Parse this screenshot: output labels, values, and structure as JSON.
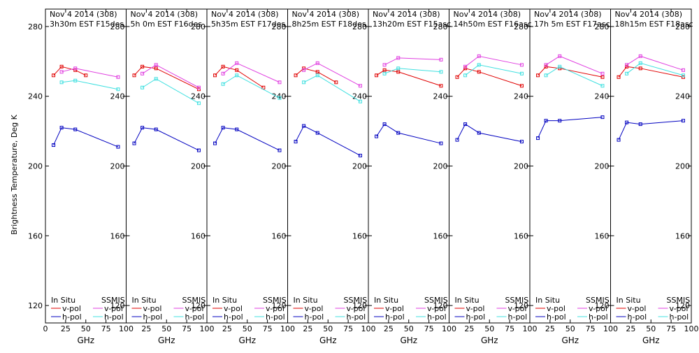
{
  "chart_data": {
    "type": "line",
    "ylabel": "Brightness Temperature, Deg K",
    "xlabel": "GHz",
    "xlim": [
      0,
      100
    ],
    "ylim": [
      110,
      290
    ],
    "x_ticks": [
      0,
      25,
      50,
      75,
      100
    ],
    "x_tick_labels": [
      "0",
      "25",
      "50",
      "75",
      "100"
    ],
    "x_tick_labels_last_panel": [
      "0",
      "25",
      "50",
      "75",
      "100"
    ],
    "x_tick_labels_other_panels": [
      "25",
      "50",
      "75",
      "100"
    ],
    "y_ticks": [
      120,
      160,
      200,
      240,
      280
    ],
    "y_tick_labels": [
      "120",
      "160",
      "200",
      "240",
      "280"
    ],
    "legend": {
      "in_situ": "In Situ",
      "ssmis": "SSMIS",
      "vpol": "v-pol",
      "hpol": "h-pol"
    },
    "colors": {
      "insitu_v": "#e00000",
      "insitu_h": "#0000c0",
      "ssmis_v": "#e040e0",
      "ssmis_h": "#40e0e0",
      "frame": "#000000",
      "background": "#ffffff"
    },
    "panels": [
      {
        "title1": "Nov 4 2014 (308)",
        "title2": "3h30m EST F15des",
        "insitu_v": {
          "x": [
            10,
            20,
            37,
            50
          ],
          "y": [
            252,
            257,
            255,
            252
          ]
        },
        "insitu_h": {
          "x": [
            10,
            20,
            37,
            90
          ],
          "y": [
            212,
            222,
            221,
            211
          ]
        },
        "ssmis_v": {
          "x": [
            20,
            37,
            90
          ],
          "y": [
            254,
            256,
            251
          ]
        },
        "ssmis_h": {
          "x": [
            20,
            37,
            90
          ],
          "y": [
            248,
            249,
            244
          ]
        }
      },
      {
        "title1": "Nov 4 2014 (308)",
        "title2": "5h 0m EST F16des",
        "insitu_v": {
          "x": [
            10,
            20,
            37,
            90
          ],
          "y": [
            252,
            257,
            256,
            244
          ]
        },
        "insitu_h": {
          "x": [
            10,
            20,
            37,
            90
          ],
          "y": [
            213,
            222,
            221,
            209
          ]
        },
        "ssmis_v": {
          "x": [
            20,
            37,
            90
          ],
          "y": [
            253,
            258,
            245
          ]
        },
        "ssmis_h": {
          "x": [
            20,
            37,
            90
          ],
          "y": [
            245,
            250,
            236
          ]
        }
      },
      {
        "title1": "Nov 4 2014 (308)",
        "title2": "5h35m EST F17des",
        "insitu_v": {
          "x": [
            10,
            20,
            37,
            70
          ],
          "y": [
            252,
            257,
            255,
            245
          ]
        },
        "insitu_h": {
          "x": [
            10,
            20,
            37,
            90
          ],
          "y": [
            213,
            222,
            221,
            209
          ]
        },
        "ssmis_v": {
          "x": [
            20,
            37,
            90
          ],
          "y": [
            253,
            259,
            248
          ]
        },
        "ssmis_h": {
          "x": [
            20,
            37,
            90
          ],
          "y": [
            247,
            252,
            239
          ]
        }
      },
      {
        "title1": "Nov 4 2014 (308)",
        "title2": "8h25m EST F18des",
        "insitu_v": {
          "x": [
            10,
            20,
            37,
            60
          ],
          "y": [
            252,
            256,
            254,
            248
          ]
        },
        "insitu_h": {
          "x": [
            10,
            20,
            37,
            90
          ],
          "y": [
            214,
            223,
            219,
            206
          ]
        },
        "ssmis_v": {
          "x": [
            20,
            37,
            90
          ],
          "y": [
            255,
            259,
            246
          ]
        },
        "ssmis_h": {
          "x": [
            20,
            37,
            90
          ],
          "y": [
            248,
            252,
            237
          ]
        }
      },
      {
        "title1": "Nov 4 2014 (308)",
        "title2": "13h20m EST F15asc",
        "insitu_v": {
          "x": [
            10,
            20,
            37,
            90
          ],
          "y": [
            252,
            255,
            254,
            246
          ]
        },
        "insitu_h": {
          "x": [
            10,
            20,
            37,
            90
          ],
          "y": [
            217,
            224,
            219,
            213
          ]
        },
        "ssmis_v": {
          "x": [
            20,
            37,
            90
          ],
          "y": [
            258,
            262,
            261
          ]
        },
        "ssmis_h": {
          "x": [
            20,
            37,
            90
          ],
          "y": [
            253,
            256,
            254
          ]
        }
      },
      {
        "title1": "Nov 4 2014 (308)",
        "title2": "14h50m EST F16asc",
        "insitu_v": {
          "x": [
            10,
            20,
            37,
            90
          ],
          "y": [
            251,
            256,
            254,
            246
          ]
        },
        "insitu_h": {
          "x": [
            10,
            20,
            37,
            90
          ],
          "y": [
            215,
            224,
            219,
            214
          ]
        },
        "ssmis_v": {
          "x": [
            20,
            37,
            90
          ],
          "y": [
            257,
            263,
            258
          ]
        },
        "ssmis_h": {
          "x": [
            20,
            37,
            90
          ],
          "y": [
            252,
            258,
            253
          ]
        }
      },
      {
        "title1": "Nov 4 2014 (308)",
        "title2": "17h 5m EST F17asc",
        "insitu_v": {
          "x": [
            10,
            20,
            37,
            90
          ],
          "y": [
            252,
            257,
            256,
            251
          ]
        },
        "insitu_h": {
          "x": [
            10,
            20,
            37,
            90
          ],
          "y": [
            216,
            226,
            226,
            228
          ]
        },
        "ssmis_v": {
          "x": [
            20,
            37,
            90
          ],
          "y": [
            258,
            263,
            253
          ]
        },
        "ssmis_h": {
          "x": [
            20,
            37,
            90
          ],
          "y": [
            252,
            257,
            246
          ]
        }
      },
      {
        "title1": "Nov 4 2014 (308)",
        "title2": "18h15m EST F18asc",
        "insitu_v": {
          "x": [
            10,
            20,
            37,
            90
          ],
          "y": [
            251,
            257,
            256,
            251
          ]
        },
        "insitu_h": {
          "x": [
            10,
            20,
            37,
            90
          ],
          "y": [
            215,
            225,
            224,
            226
          ]
        },
        "ssmis_v": {
          "x": [
            20,
            37,
            90
          ],
          "y": [
            258,
            263,
            255
          ]
        },
        "ssmis_h": {
          "x": [
            20,
            37,
            90
          ],
          "y": [
            253,
            259,
            252
          ]
        }
      }
    ]
  }
}
